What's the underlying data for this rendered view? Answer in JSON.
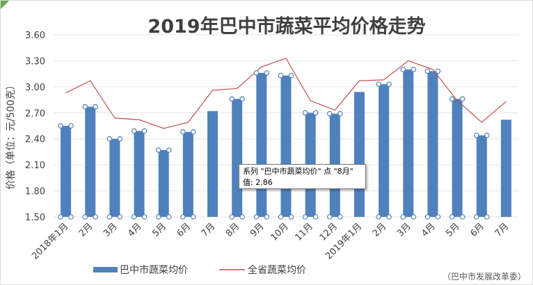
{
  "chart_data": {
    "type": "bar",
    "title": "2019年巴中市蔬菜平均价格走势",
    "ylabel": "价格（单位：元/500克）",
    "xlabel": "",
    "ylim": [
      1.5,
      3.6
    ],
    "yticks": [
      "3.60",
      "3.30",
      "3.00",
      "2.70",
      "2.40",
      "2.10",
      "1.80",
      "1.50"
    ],
    "grid": true,
    "legend_position": "bottom",
    "categories": [
      "2018年1月",
      "2月",
      "3月",
      "4月",
      "5月",
      "6月",
      "7月",
      "8月",
      "9月",
      "10月",
      "11月",
      "12月",
      "2019年1月",
      "2月",
      "3月",
      "4月",
      "5月",
      "6月",
      "7月"
    ],
    "series": [
      {
        "name": "巴中市蔬菜均价",
        "type": "bar",
        "color": "#4f81bd",
        "values": [
          2.55,
          2.77,
          2.4,
          2.49,
          2.27,
          2.48,
          2.72,
          2.86,
          3.16,
          3.13,
          2.7,
          2.69,
          2.94,
          3.03,
          3.2,
          3.18,
          2.86,
          2.44,
          2.62
        ]
      },
      {
        "name": "全省蔬菜均价",
        "type": "line",
        "color": "#c0504d",
        "values": [
          2.93,
          3.07,
          2.64,
          2.62,
          2.52,
          2.59,
          2.96,
          2.98,
          3.23,
          3.33,
          2.84,
          2.73,
          3.07,
          3.08,
          3.3,
          3.2,
          2.84,
          2.59,
          2.83
        ]
      }
    ],
    "selected_series_index": 0,
    "tooltip": {
      "line1": "系列 \"巴中市蔬菜均价\" 点 \"8月\"",
      "line2": "值: 2.86"
    },
    "source_note": "（巴中市发展改革委）"
  }
}
